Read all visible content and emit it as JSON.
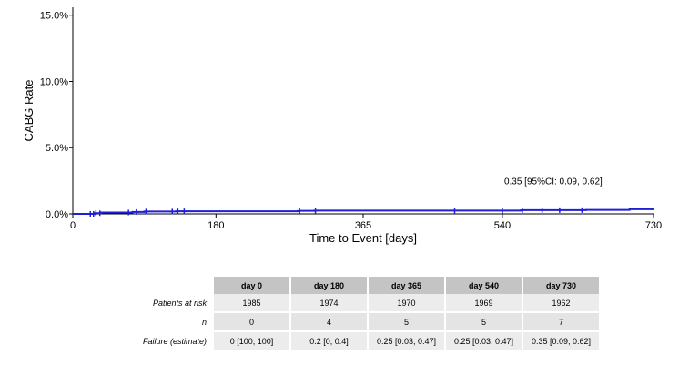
{
  "chart_data": {
    "type": "line",
    "title": "",
    "xlabel": "Time to Event [days]",
    "ylabel": "CABG Rate",
    "xlim": [
      0,
      730
    ],
    "ylim": [
      0,
      15.6
    ],
    "x_ticks": [
      0,
      180,
      365,
      540,
      730
    ],
    "x_tick_labels": [
      "0",
      "180",
      "365",
      "540",
      "730"
    ],
    "y_ticks": [
      0,
      5,
      10,
      15
    ],
    "y_tick_labels": [
      "0.0%",
      "5.0%",
      "10.0%",
      "15.0%"
    ],
    "line_color": "#1f1fd6",
    "annotation": {
      "text": "0.35 [95%CI: 0.09, 0.62]",
      "x": 540,
      "y": 2.5
    },
    "series": [
      {
        "x": [
          0,
          27,
          35,
          75,
          90,
          130,
          140,
          285,
          305,
          480,
          545,
          565,
          590,
          615,
          645,
          700,
          730
        ],
        "y": [
          0.0,
          0.05,
          0.1,
          0.15,
          0.18,
          0.2,
          0.2,
          0.23,
          0.25,
          0.25,
          0.25,
          0.28,
          0.28,
          0.28,
          0.3,
          0.35,
          0.35
        ],
        "step": true
      }
    ],
    "censor_x": [
      22,
      26,
      29,
      34,
      70,
      80,
      92,
      125,
      132,
      140,
      285,
      305,
      480,
      540,
      565,
      590,
      612,
      640
    ]
  },
  "risk_table": {
    "columns": [
      "day 0",
      "day 180",
      "day 365",
      "day 540",
      "day 730"
    ],
    "rows": [
      {
        "label": "Patients at risk",
        "values": [
          "1985",
          "1974",
          "1970",
          "1969",
          "1962"
        ]
      },
      {
        "label": "n",
        "values": [
          "0",
          "4",
          "5",
          "5",
          "7"
        ]
      },
      {
        "label": "Failure (estimate)",
        "values": [
          "0 [100, 100]",
          "0.2 [0, 0.4]",
          "0.25 [0.03, 0.47]",
          "0.25 [0.03, 0.47]",
          "0.35 [0.09, 0.62]"
        ]
      }
    ]
  }
}
